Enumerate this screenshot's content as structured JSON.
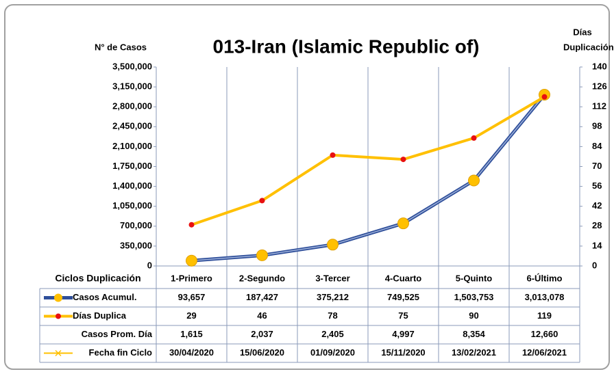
{
  "chart_data": {
    "type": "line",
    "title": "013-Iran (Islamic Republic of)",
    "y_label": "N° de Casos",
    "y2_label": [
      "Días",
      "Duplicación"
    ],
    "x_label": "Ciclos Duplicación",
    "categories": [
      "1-Primero",
      "2-Segundo",
      "3-Tercer",
      "4-Cuarto",
      "5-Quinto",
      "6-Último"
    ],
    "ylim": [
      0,
      3500000
    ],
    "yticks": [
      0,
      {
        "value": 350000,
        "label": "350,000"
      },
      {
        "value": 700000,
        "label": "700,000"
      },
      {
        "value": 1050000,
        "label": "1,050,000"
      },
      {
        "value": 1400000,
        "label": "1,400,000"
      },
      {
        "value": 1750000,
        "label": "1,750,000"
      },
      {
        "value": 2100000,
        "label": "2,100,000"
      },
      {
        "value": 2450000,
        "label": "2,450,000"
      },
      {
        "value": 2800000,
        "label": "2,800,000"
      },
      {
        "value": 3150000,
        "label": "3,150,000"
      },
      {
        "value": 3500000,
        "label": "3,500,000"
      }
    ],
    "y2lim": [
      0,
      140
    ],
    "y2ticks": [
      0,
      14,
      28,
      42,
      56,
      70,
      84,
      98,
      112,
      126,
      140
    ],
    "series": [
      {
        "name": "Casos Acumul.",
        "color": "#2f4f9a",
        "marker_color": "#ffc000",
        "values": [
          93657,
          187427,
          375212,
          749525,
          1503753,
          3013078
        ],
        "value_labels": [
          "93,657",
          "187,427",
          "375,212",
          "749,525",
          "1,503,753",
          "3,013,078"
        ]
      },
      {
        "name": "Días Duplica",
        "color": "#ffc000",
        "marker_color": "#e81010",
        "axis": "y2",
        "values": [
          29,
          46,
          78,
          75,
          90,
          119
        ]
      }
    ],
    "table_rows": [
      {
        "name": "Casos Prom. Día",
        "values": [
          1615,
          2037,
          2405,
          4997,
          8354,
          12660
        ],
        "value_labels": [
          "1,615",
          "2,037",
          "2,405",
          "4,997",
          "8,354",
          "12,660"
        ]
      },
      {
        "name": "Fecha fin Ciclo",
        "color": "#ffc000",
        "values": [
          "30/04/2020",
          "15/06/2020",
          "01/09/2020",
          "15/11/2020",
          "13/02/2021",
          "12/06/2021"
        ]
      }
    ]
  }
}
